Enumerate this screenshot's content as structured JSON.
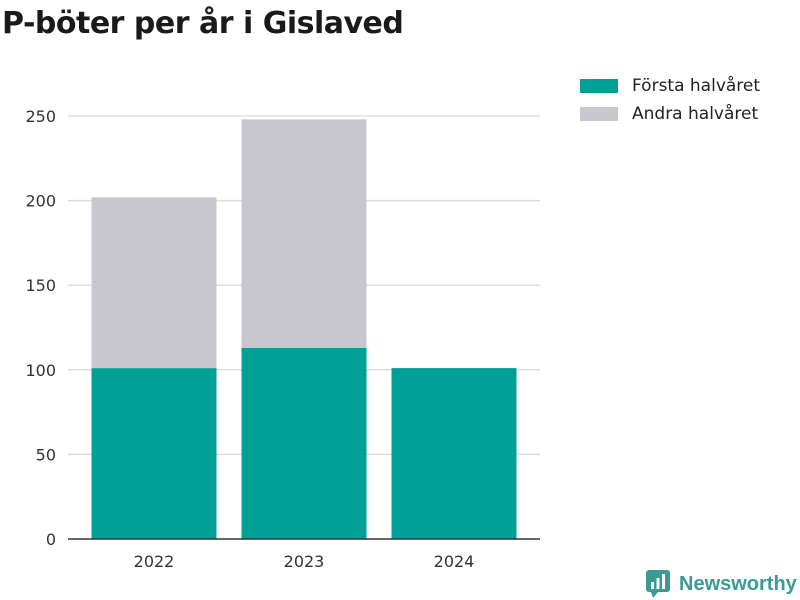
{
  "title": "P-böter per år i Gislaved",
  "chart_data": {
    "type": "bar",
    "stacked": true,
    "categories": [
      "2022",
      "2023",
      "2024"
    ],
    "series": [
      {
        "name": "Första halvåret",
        "color": "#00a096",
        "values": [
          101,
          113,
          101
        ]
      },
      {
        "name": "Andra halvåret",
        "color": "#c8c7d0",
        "values": [
          101,
          135,
          0
        ]
      }
    ],
    "ylim": [
      0,
      260
    ],
    "yticks": [
      0,
      50,
      100,
      150,
      200,
      250
    ],
    "grid": true,
    "legend": "top-right"
  },
  "legend": {
    "items": [
      {
        "label": "Första halvåret",
        "color": "#00a096"
      },
      {
        "label": "Andra halvåret",
        "color": "#c8c7d0"
      }
    ]
  },
  "brand": {
    "name": "Newsworthy",
    "icon": "newsworthy-logo-icon",
    "color": "#3a9a96"
  }
}
